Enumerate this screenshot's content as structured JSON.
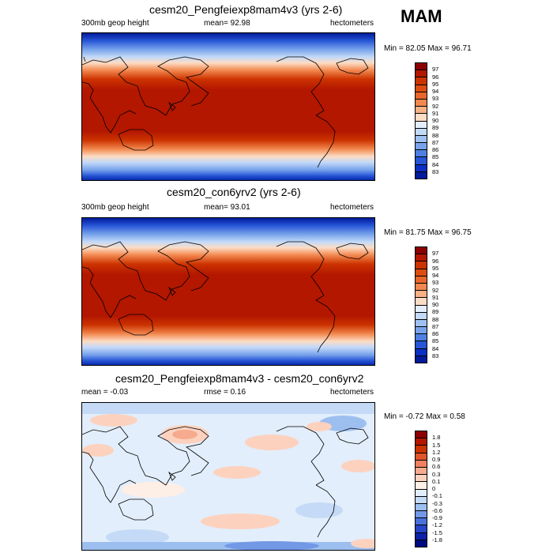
{
  "season": "MAM",
  "units": "hectometers",
  "panels": [
    {
      "title": "cesm20_Pengfeiexp8mam4v3 (yrs 2-6)",
      "left_label": "300mb geop height",
      "center_label": "mean=  92.98",
      "right_label": "hectometers",
      "minmax": "Min =  82.05 Max =  96.71",
      "levels": [
        "97",
        "96",
        "95",
        "94",
        "93",
        "92",
        "91",
        "90",
        "89",
        "88",
        "87",
        "86",
        "85",
        "84",
        "83"
      ],
      "colors": [
        "#8c0000",
        "#b31700",
        "#cc3300",
        "#dd4d10",
        "#e8662c",
        "#f2884f",
        "#f8b085",
        "#fcdcc4",
        "#e3eefc",
        "#c3d9f8",
        "#9fc1f2",
        "#78a3eb",
        "#4d80e2",
        "#2655d6",
        "#0a2fc4",
        "#001a9a"
      ]
    },
    {
      "title": "cesm20_con6yrv2 (yrs 2-6)",
      "left_label": "300mb geop height",
      "center_label": "mean=  93.01",
      "right_label": "hectometers",
      "minmax": "Min =  81.75 Max =  96.75",
      "levels": [
        "97",
        "96",
        "95",
        "94",
        "93",
        "92",
        "91",
        "90",
        "89",
        "88",
        "87",
        "86",
        "85",
        "84",
        "83"
      ],
      "colors": [
        "#8c0000",
        "#b31700",
        "#cc3300",
        "#dd4d10",
        "#e8662c",
        "#f2884f",
        "#f8b085",
        "#fcdcc4",
        "#e3eefc",
        "#c3d9f8",
        "#9fc1f2",
        "#78a3eb",
        "#4d80e2",
        "#2655d6",
        "#0a2fc4",
        "#001a9a"
      ]
    },
    {
      "title": "cesm20_Pengfeiexp8mam4v3 - cesm20_con6yrv2",
      "left_label": "mean =  -0.03",
      "center_label": "rmse =   0.16",
      "right_label": "hectometers",
      "minmax": "Min =  -0.72 Max =    0.58",
      "levels": [
        "1.8",
        "1.5",
        "1.2",
        "0.9",
        "0.6",
        "0.3",
        "0.1",
        "0",
        "-0.1",
        "-0.3",
        "-0.6",
        "-0.9",
        "-1.2",
        "-1.5",
        "-1.8"
      ],
      "colors": [
        "#8c0000",
        "#b31700",
        "#cc3300",
        "#e0552a",
        "#ef8060",
        "#f6aa8e",
        "#fcd2bf",
        "#fdeee6",
        "#e2eefb",
        "#c4daf6",
        "#9dbff0",
        "#7398e6",
        "#4a70dc",
        "#2645c8",
        "#0d22a8",
        "#000a80"
      ]
    }
  ]
}
